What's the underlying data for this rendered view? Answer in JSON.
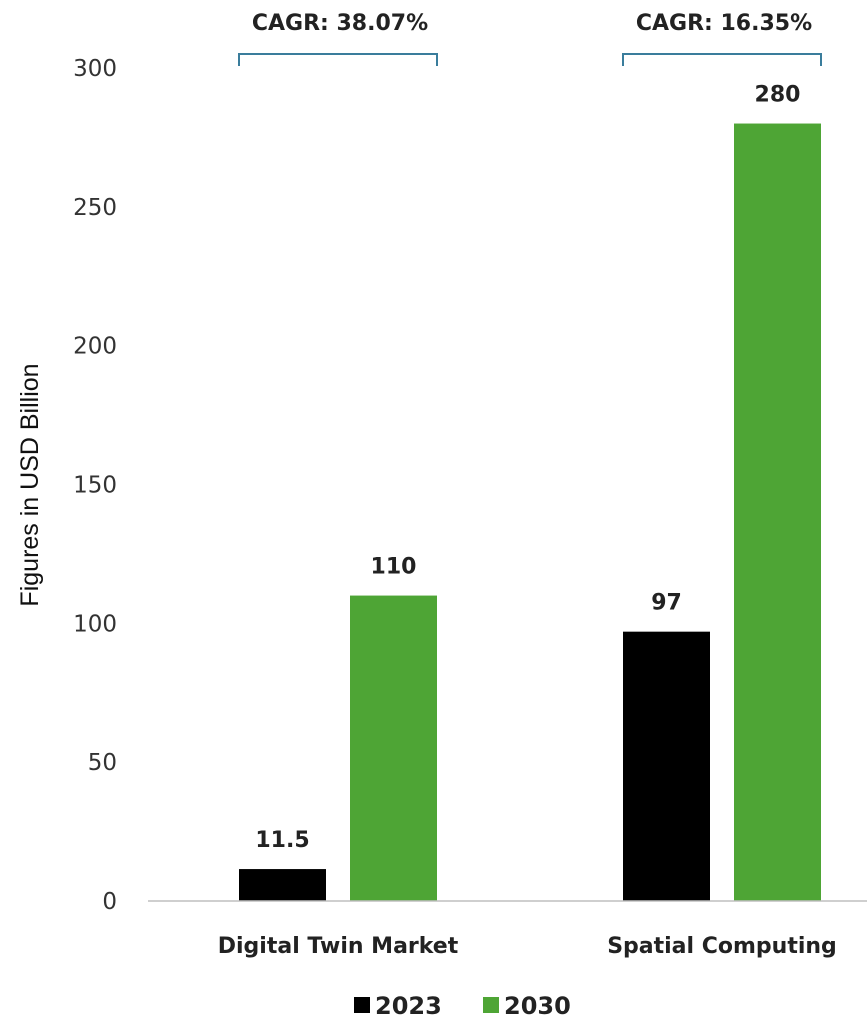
{
  "chart_data": {
    "type": "bar",
    "categories": [
      "Digital Twin Market",
      "Spatial Computing"
    ],
    "series": [
      {
        "name": "2023",
        "values": [
          11.5,
          97
        ],
        "color": "#000000",
        "labels": [
          "11.5",
          "97"
        ]
      },
      {
        "name": "2030",
        "values": [
          110,
          280
        ],
        "color": "#4ea535",
        "labels": [
          "110",
          "280"
        ]
      }
    ],
    "ylabel": "Figures in USD Billion",
    "xlabel": "",
    "ylim": [
      0,
      300
    ],
    "yticks": [
      0,
      50,
      100,
      150,
      200,
      250,
      300
    ],
    "annotations": [
      "CAGR: 38.07%",
      "CAGR: 16.35%"
    ],
    "annotation_color": "#3a7d9c",
    "grid": false,
    "legend": "bottom-center"
  }
}
